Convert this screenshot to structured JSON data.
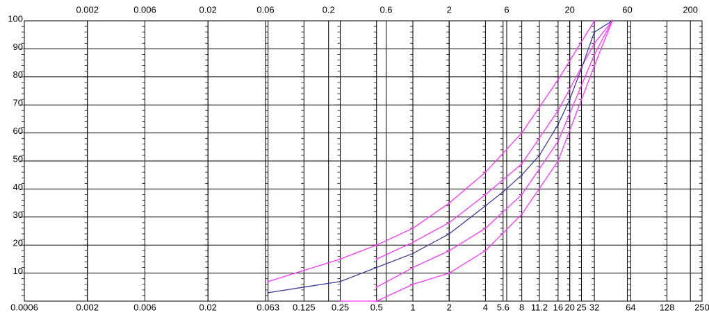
{
  "chart_data": {
    "type": "line",
    "xscale": "log",
    "grid": true,
    "xlim": [
      0.0006,
      250
    ],
    "ylim": [
      0,
      100
    ],
    "xticks": [
      0.0006,
      0.002,
      0.006,
      0.02,
      0.063,
      0.125,
      0.25,
      0.5,
      1,
      2,
      4,
      5.6,
      8,
      11.2,
      16,
      20,
      25,
      32,
      64,
      128,
      250
    ],
    "xticks_top": [
      0.002,
      0.006,
      0.02,
      0.06,
      0.2,
      0.6,
      2,
      6,
      20,
      60,
      200
    ],
    "yticks": [
      10,
      20,
      30,
      40,
      50,
      60,
      70,
      80,
      90,
      100
    ],
    "series": [
      {
        "color": "#ff33ff",
        "x": [
          0.063,
          0.25,
          0.5,
          1,
          2,
          4,
          8,
          16,
          32
        ],
        "values": [
          7,
          15,
          20,
          26,
          35,
          46,
          60,
          79,
          100
        ]
      },
      {
        "color": "#ff33ff",
        "x": [
          0.5,
          1,
          2,
          4,
          8,
          16,
          32,
          45
        ],
        "values": [
          15,
          21,
          28,
          38,
          49,
          68,
          92,
          100
        ]
      },
      {
        "color": "#3b3b9a",
        "x": [
          0.063,
          0.125,
          0.25,
          0.5,
          1,
          2,
          4,
          5.6,
          8,
          11.2,
          16,
          20,
          25,
          32,
          45
        ],
        "values": [
          3,
          5,
          7,
          12,
          17,
          24,
          34,
          39,
          45,
          52,
          63,
          72,
          83,
          96,
          100
        ]
      },
      {
        "color": "#ff33ff",
        "x": [
          0.5,
          1,
          2,
          4,
          8,
          16,
          32,
          45
        ],
        "values": [
          5,
          12,
          18,
          26,
          38,
          57,
          88,
          100
        ]
      },
      {
        "color": "#ff33ff",
        "x": [
          0.25,
          0.5,
          1,
          2,
          4,
          8,
          16,
          32,
          45
        ],
        "values": [
          0,
          0,
          6,
          10,
          18,
          31,
          50,
          84,
          100
        ]
      }
    ]
  }
}
